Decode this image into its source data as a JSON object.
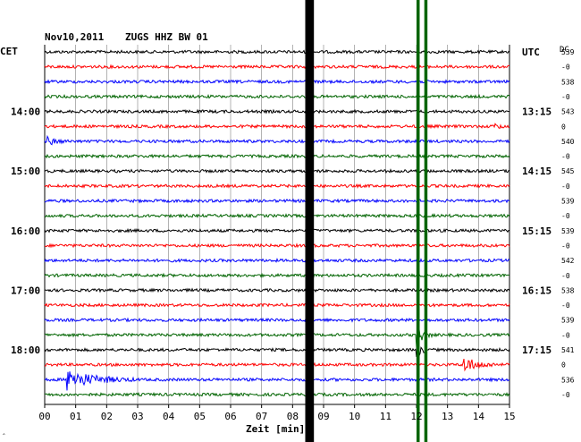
{
  "header": {
    "date": "Nov10,2011",
    "station": "ZUGS HHZ BW 01"
  },
  "left_timezone": "CET",
  "right_timezone": "UTC",
  "dc_label": "DC",
  "x_axis_label": "Zeit [min]",
  "corner_mark": "‸",
  "colors": {
    "cycle": [
      "#000000",
      "#ff0000",
      "#0000ff",
      "#006400"
    ],
    "grid": "#808080",
    "black_marker": "#000000",
    "green_marker": "#006400"
  },
  "chart_data": {
    "type": "helicorder",
    "title": "Nov10,2011   ZUGS HHZ BW 01",
    "xlabel": "Zeit [min]",
    "x_ticks": [
      "00",
      "01",
      "02",
      "03",
      "04",
      "05",
      "06",
      "07",
      "08",
      "09",
      "10",
      "11",
      "12",
      "13",
      "14",
      "15"
    ],
    "xlim": [
      0,
      15
    ],
    "trace_count": 24,
    "trace_minutes": 15,
    "left_hour_labels": [
      {
        "trace": 4,
        "text": "14:00"
      },
      {
        "trace": 8,
        "text": "15:00"
      },
      {
        "trace": 12,
        "text": "16:00"
      },
      {
        "trace": 16,
        "text": "17:00"
      },
      {
        "trace": 20,
        "text": "18:00"
      }
    ],
    "right_hour_labels": [
      {
        "trace": 0,
        "text": "UTC"
      },
      {
        "trace": 4,
        "text": "13:15"
      },
      {
        "trace": 8,
        "text": "14:15"
      },
      {
        "trace": 12,
        "text": "15:15"
      },
      {
        "trace": 16,
        "text": "16:15"
      },
      {
        "trace": 20,
        "text": "17:15"
      }
    ],
    "dc_values": [
      "539",
      "-0",
      "538",
      "-0",
      "543",
      "0",
      "540",
      "-0",
      "545",
      "-0",
      "539",
      "-0",
      "539",
      "-0",
      "542",
      "-0",
      "538",
      "-0",
      "539",
      "-0",
      "541",
      "0",
      "536",
      "-0"
    ],
    "vertical_markers": [
      {
        "minute": 8.55,
        "color": "black",
        "width_min": 0.28
      },
      {
        "minute": 12.05,
        "color": "green",
        "width_min": 0.1
      },
      {
        "minute": 12.3,
        "color": "green",
        "width_min": 0.1
      }
    ],
    "events": [
      {
        "trace": 6,
        "minute": 0.05,
        "amplitude": 5,
        "duration_min": 0.7
      },
      {
        "trace": 5,
        "minute": 14.5,
        "amplitude": 3,
        "duration_min": 0.5
      },
      {
        "trace": 21,
        "minute": 13.5,
        "amplitude": 9,
        "duration_min": 1.2
      },
      {
        "trace": 22,
        "minute": 0.7,
        "amplitude": 12,
        "duration_min": 2.2
      },
      {
        "trace": 19,
        "minute": 12.0,
        "amplitude": 14,
        "duration_min": 0.5
      },
      {
        "trace": 20,
        "minute": 12.0,
        "amplitude": 10,
        "duration_min": 0.4
      }
    ]
  }
}
